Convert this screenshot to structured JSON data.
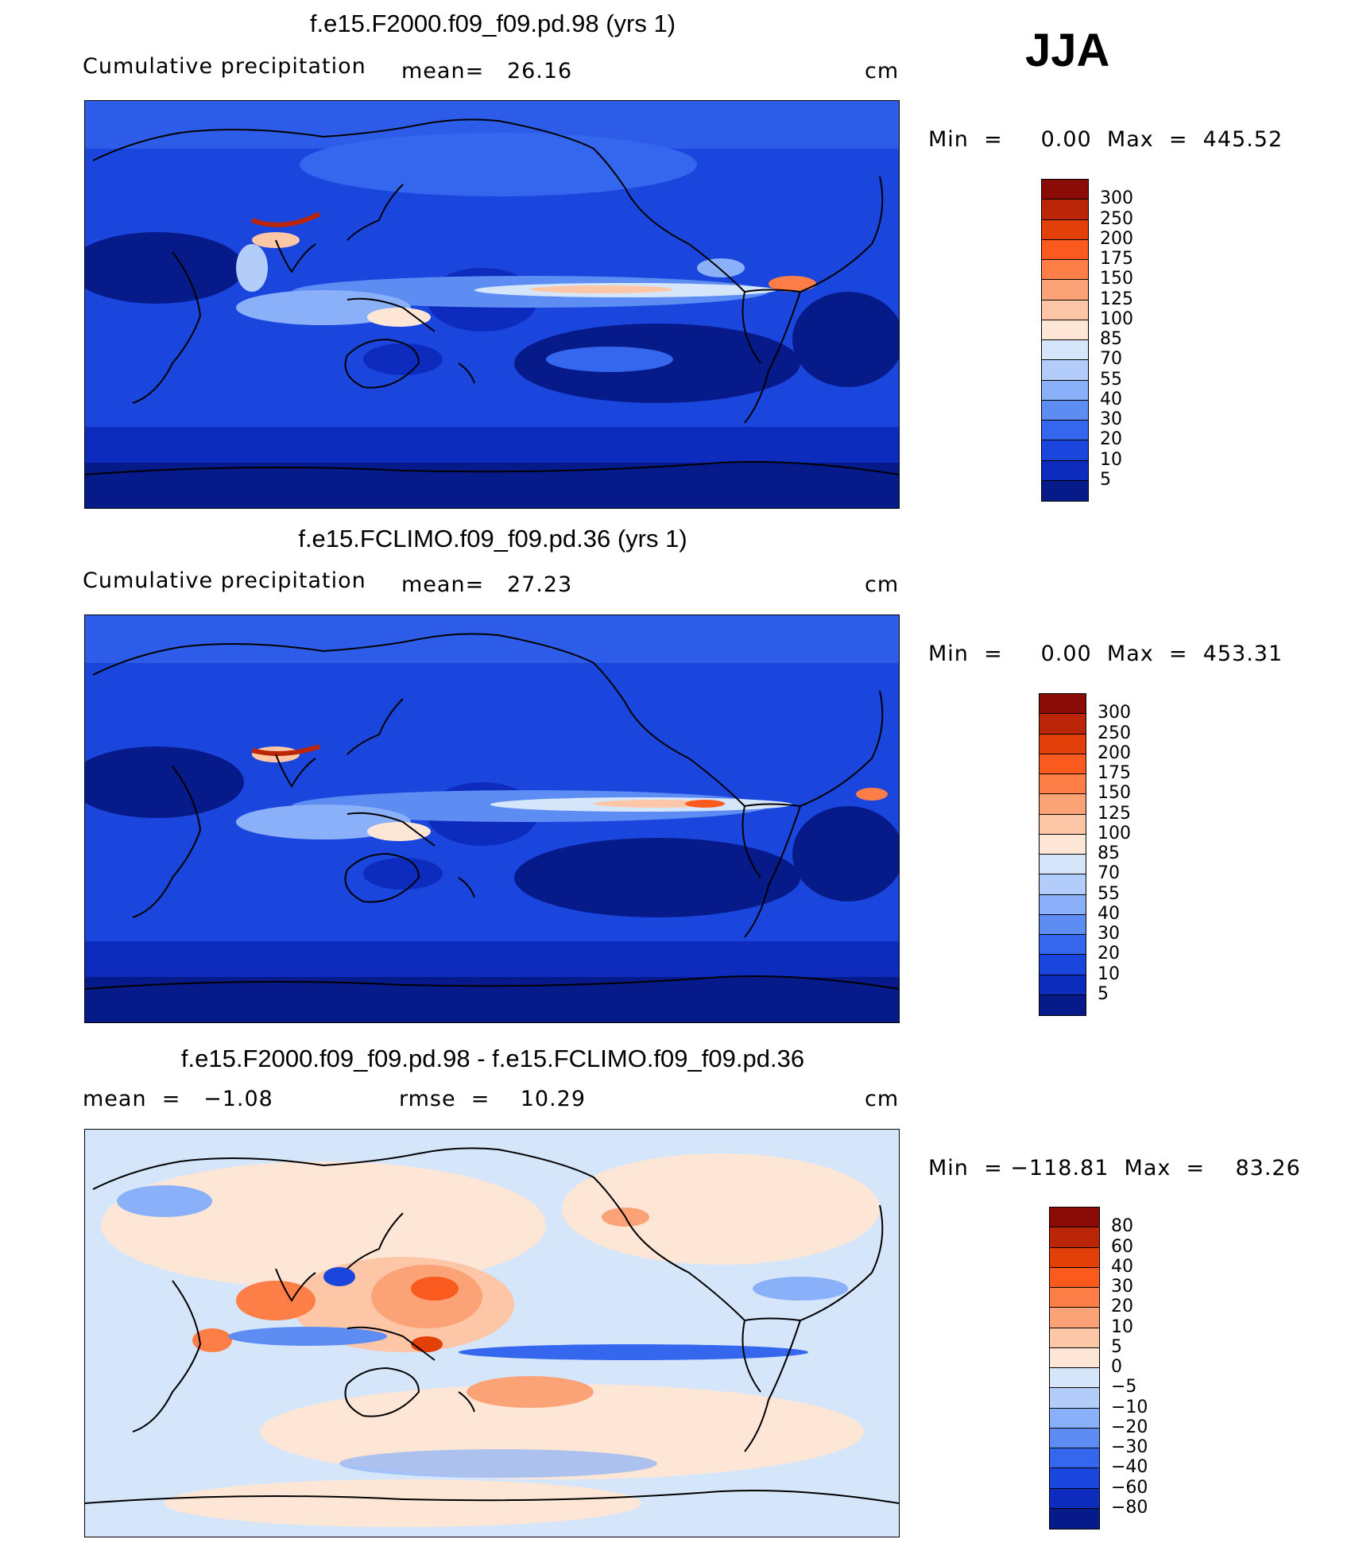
{
  "season_label": "JJA",
  "panels": [
    {
      "title": "f.e15.F2000.f09_f09.pd.98 (yrs 1)",
      "subtitle": "Cumulative precipitation",
      "mean_text": "mean=   26.16",
      "units": "cm",
      "minmax_text": "Min  =     0.00  Max  =  445.52",
      "colorbar": {
        "labels": [
          "300",
          "250",
          "200",
          "175",
          "150",
          "125",
          "100",
          "85",
          "70",
          "55",
          "40",
          "30",
          "20",
          "10",
          "5"
        ],
        "colors": [
          "#8b0c06",
          "#bb2508",
          "#e23f09",
          "#fb5a1f",
          "#fd7e47",
          "#fca277",
          "#fdc6a7",
          "#fde6d6",
          "#d5e6fb",
          "#b3cdfb",
          "#8ab0f9",
          "#5d8cf3",
          "#3466ee",
          "#1b46de",
          "#0d2cbd",
          "#061a8a"
        ]
      }
    },
    {
      "title": "f.e15.FCLIMO.f09_f09.pd.36 (yrs 1)",
      "subtitle": "Cumulative precipitation",
      "mean_text": "mean=   27.23",
      "units": "cm",
      "minmax_text": "Min  =     0.00  Max  =  453.31",
      "colorbar": {
        "labels": [
          "300",
          "250",
          "200",
          "175",
          "150",
          "125",
          "100",
          "85",
          "70",
          "55",
          "40",
          "30",
          "20",
          "10",
          "5"
        ],
        "colors": [
          "#8b0c06",
          "#bb2508",
          "#e23f09",
          "#fb5a1f",
          "#fd7e47",
          "#fca277",
          "#fdc6a7",
          "#fde6d6",
          "#d5e6fb",
          "#b3cdfb",
          "#8ab0f9",
          "#5d8cf3",
          "#3466ee",
          "#1b46de",
          "#0d2cbd",
          "#061a8a"
        ]
      }
    },
    {
      "title": "f.e15.F2000.f09_f09.pd.98 - f.e15.FCLIMO.f09_f09.pd.36",
      "mean_text": "mean  =   −1.08",
      "rmse_text": "rmse  =    10.29",
      "units": "cm",
      "minmax_text": "Min  = −118.81  Max  =    83.26",
      "colorbar": {
        "labels": [
          "80",
          "60",
          "40",
          "30",
          "20",
          "10",
          "5",
          "0",
          "−5",
          "−10",
          "−20",
          "−30",
          "−40",
          "−60",
          "−80"
        ],
        "colors": [
          "#8b0c06",
          "#bb2508",
          "#e23f09",
          "#fb5a1f",
          "#fd7e47",
          "#fca277",
          "#fdc6a7",
          "#fde6d6",
          "#d5e6fb",
          "#b3cdfb",
          "#8ab0f9",
          "#5d8cf3",
          "#3466ee",
          "#1b46de",
          "#0d2cbd",
          "#061a8a"
        ]
      }
    }
  ]
}
